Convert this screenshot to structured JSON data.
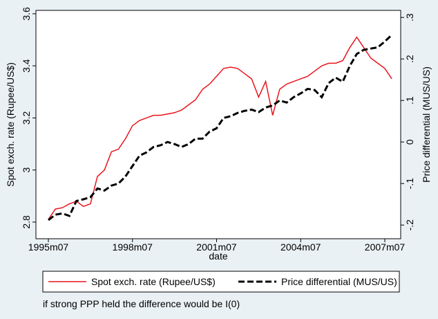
{
  "chart_data": {
    "type": "line",
    "x": [
      "1995m07",
      "1995m10",
      "1996m01",
      "1996m04",
      "1996m07",
      "1996m10",
      "1997m01",
      "1997m04",
      "1997m07",
      "1997m10",
      "1998m01",
      "1998m04",
      "1998m07",
      "1998m10",
      "1999m01",
      "1999m04",
      "1999m07",
      "1999m10",
      "2000m01",
      "2000m04",
      "2000m07",
      "2000m10",
      "2001m01",
      "2001m04",
      "2001m07",
      "2001m10",
      "2002m01",
      "2002m04",
      "2002m07",
      "2002m10",
      "2003m01",
      "2003m04",
      "2003m07",
      "2003m10",
      "2004m01",
      "2004m04",
      "2004m07",
      "2004m10",
      "2005m01",
      "2005m04",
      "2005m07",
      "2005m10",
      "2006m01",
      "2006m04",
      "2006m07",
      "2006m10",
      "2007m01",
      "2007m04",
      "2007m07",
      "2007m10"
    ],
    "xticks": [
      "1995m07",
      "1998m07",
      "2001m07",
      "2004m07",
      "2007m07"
    ],
    "x_label": "date",
    "y_label": "Spot exch. rate (Rupee/US$)",
    "y2_label": "Price differential (MUS/US)",
    "ylim": [
      2.736,
      3.613
    ],
    "yticks": [
      2.8,
      3,
      3.2,
      3.4,
      3.6
    ],
    "y2lim": [
      -0.233,
      0.317
    ],
    "y2ticks": [
      {
        "value": -0.2,
        "label": "-.2"
      },
      {
        "value": -0.1,
        "label": "-.1"
      },
      {
        "value": 0,
        "label": "0"
      },
      {
        "value": 0.1,
        "label": ".1"
      },
      {
        "value": 0.2,
        "label": ".2"
      },
      {
        "value": 0.3,
        "label": ".3"
      }
    ],
    "series": [
      {
        "name": "Spot exch. rate (Rupee/US$)",
        "color": "#e8141c",
        "dash": false,
        "values": [
          2.81,
          2.85,
          2.855,
          2.87,
          2.88,
          2.86,
          2.87,
          2.975,
          3.0,
          3.07,
          3.08,
          3.12,
          3.17,
          3.19,
          3.2,
          3.21,
          3.21,
          3.215,
          3.22,
          3.23,
          3.25,
          3.27,
          3.31,
          3.33,
          3.36,
          3.39,
          3.395,
          3.39,
          3.37,
          3.35,
          3.28,
          3.34,
          3.21,
          3.31,
          3.33,
          3.34,
          3.35,
          3.36,
          3.38,
          3.4,
          3.41,
          3.41,
          3.42,
          3.47,
          3.51,
          3.47,
          3.43,
          3.41,
          3.39,
          3.35
        ]
      },
      {
        "name": "Price differential (MUS/US)",
        "color": "#000000",
        "dash": true,
        "axis": "y2",
        "values": [
          -0.188,
          -0.175,
          -0.172,
          -0.178,
          -0.142,
          -0.138,
          -0.133,
          -0.112,
          -0.117,
          -0.105,
          -0.1,
          -0.083,
          -0.058,
          -0.033,
          -0.025,
          -0.012,
          -0.008,
          0,
          -0.005,
          -0.012,
          -0.005,
          0.008,
          0.008,
          0.025,
          0.033,
          0.058,
          0.062,
          0.07,
          0.075,
          0.078,
          0.072,
          0.083,
          0.088,
          0.1,
          0.095,
          0.108,
          0.117,
          0.128,
          0.125,
          0.108,
          0.142,
          0.155,
          0.145,
          0.183,
          0.212,
          0.222,
          0.225,
          0.228,
          0.242,
          0.258
        ]
      }
    ],
    "note": "if strong PPP held the difference would be I(0)"
  }
}
